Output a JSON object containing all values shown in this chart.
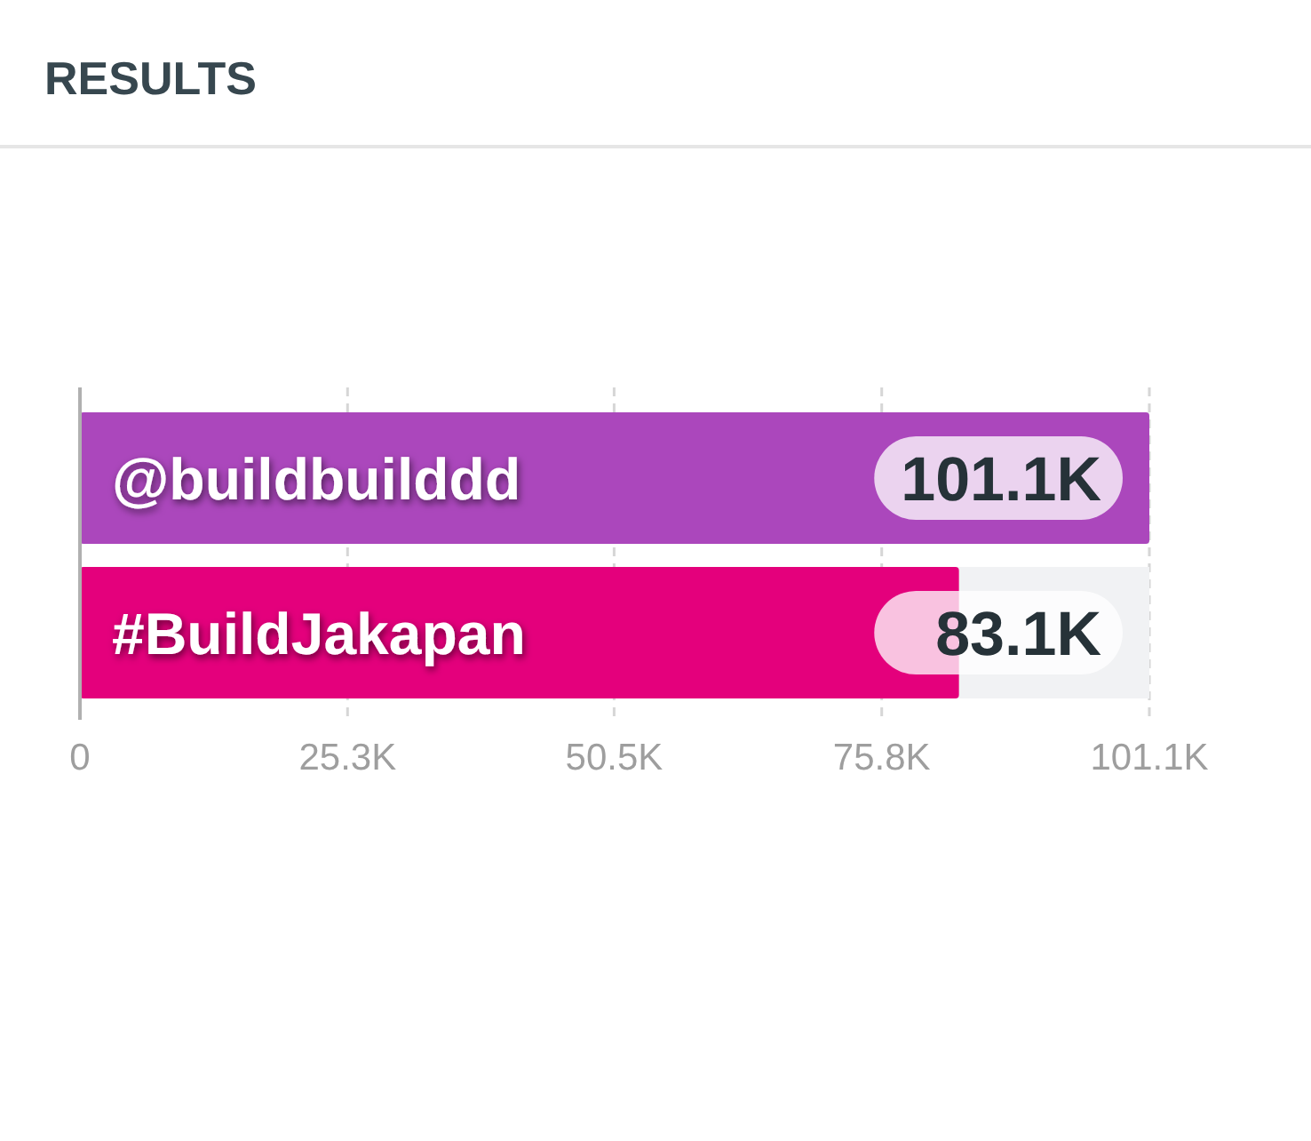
{
  "chart_data": {
    "type": "bar",
    "title": "RESULTS",
    "orientation": "horizontal",
    "categories": [
      "@buildbuilddd",
      "#BuildJakapan"
    ],
    "values": [
      101100,
      83100
    ],
    "colors": [
      "#ab47bc",
      "#e4007c"
    ],
    "value_labels": [
      "101.1K",
      "83.1K"
    ],
    "xlim": [
      0,
      101100
    ],
    "xticks": [
      0,
      {
        "value": 25300,
        "label": "25.3K"
      },
      {
        "value": 50500,
        "label": "50.5K"
      },
      {
        "value": 75800,
        "label": "75.8K"
      },
      {
        "value": 101100,
        "label": "101.1K"
      }
    ],
    "grid": "x"
  }
}
